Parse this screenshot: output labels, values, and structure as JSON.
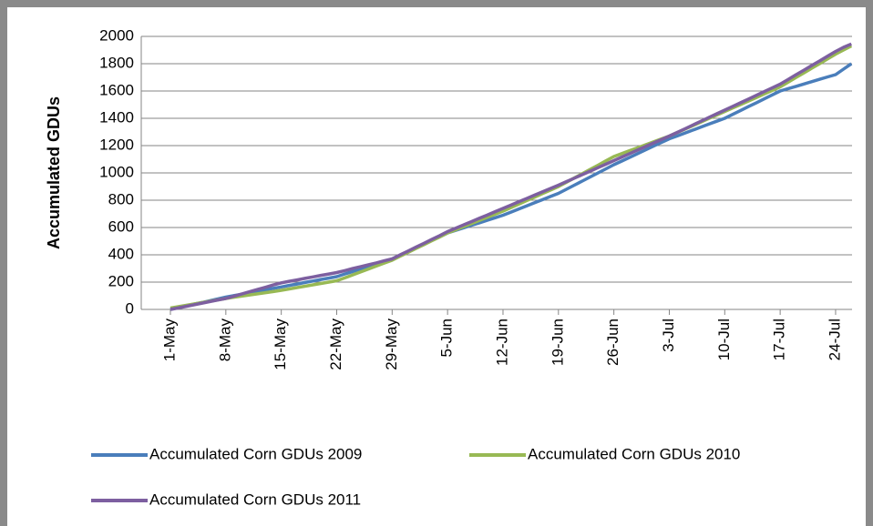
{
  "chart_data": {
    "type": "line",
    "y_label": "Accumulated GDUs",
    "categories": [
      "1-May",
      null,
      null,
      null,
      null,
      null,
      null,
      "8-May",
      null,
      null,
      null,
      null,
      null,
      null,
      "15-May",
      null,
      null,
      null,
      null,
      null,
      null,
      "22-May",
      null,
      null,
      null,
      null,
      null,
      null,
      "29-May",
      null,
      null,
      null,
      null,
      null,
      null,
      "5-Jun",
      null,
      null,
      null,
      null,
      null,
      null,
      "12-Jun",
      null,
      null,
      null,
      null,
      null,
      null,
      "19-Jun",
      null,
      null,
      null,
      null,
      null,
      null,
      "26-Jun",
      null,
      null,
      null,
      null,
      null,
      null,
      "3-Jul",
      null,
      null,
      null,
      null,
      null,
      null,
      "10-Jul",
      null,
      null,
      null,
      null,
      null,
      null,
      "17-Jul",
      null,
      null,
      null,
      null,
      null,
      null,
      "24-Jul",
      null,
      null
    ],
    "series": [
      {
        "name": "Accumulated Corn GDUs 2009",
        "color": "#4a7ebb",
        "values": [
          0,
          13,
          26,
          39,
          51,
          64,
          77,
          90,
          101,
          111,
          122,
          133,
          144,
          154,
          165,
          176,
          186,
          197,
          208,
          219,
          229,
          240,
          259,
          277,
          296,
          314,
          333,
          351,
          370,
          397,
          424,
          451,
          479,
          506,
          533,
          560,
          579,
          597,
          616,
          634,
          653,
          671,
          690,
          713,
          736,
          759,
          781,
          804,
          827,
          850,
          880,
          910,
          940,
          970,
          1000,
          1030,
          1060,
          1087,
          1114,
          1141,
          1169,
          1196,
          1223,
          1250,
          1271,
          1293,
          1314,
          1336,
          1357,
          1379,
          1400,
          1429,
          1457,
          1486,
          1514,
          1543,
          1571,
          1600,
          1617,
          1634,
          1651,
          1669,
          1686,
          1703,
          1720,
          1760,
          1800
        ]
      },
      {
        "name": "Accumulated Corn GDUs 2010",
        "color": "#98b954",
        "values": [
          10,
          20,
          30,
          40,
          50,
          60,
          70,
          80,
          89,
          97,
          106,
          114,
          123,
          131,
          140,
          150,
          160,
          170,
          180,
          190,
          200,
          210,
          231,
          253,
          274,
          296,
          317,
          339,
          360,
          389,
          417,
          446,
          474,
          503,
          531,
          560,
          583,
          606,
          629,
          651,
          674,
          697,
          720,
          746,
          771,
          797,
          823,
          849,
          874,
          900,
          931,
          963,
          994,
          1026,
          1057,
          1089,
          1120,
          1141,
          1163,
          1184,
          1206,
          1227,
          1249,
          1270,
          1296,
          1321,
          1347,
          1373,
          1399,
          1424,
          1450,
          1476,
          1501,
          1527,
          1553,
          1579,
          1604,
          1630,
          1664,
          1699,
          1733,
          1767,
          1801,
          1836,
          1870,
          1900,
          1930
        ]
      },
      {
        "name": "Accumulated Corn GDUs 2011",
        "color": "#7d5fa0",
        "values": [
          0,
          11,
          23,
          34,
          46,
          57,
          69,
          80,
          96,
          113,
          129,
          146,
          162,
          179,
          195,
          206,
          216,
          227,
          238,
          249,
          259,
          270,
          284,
          299,
          313,
          327,
          341,
          356,
          370,
          399,
          427,
          456,
          484,
          513,
          541,
          570,
          594,
          619,
          643,
          667,
          691,
          716,
          740,
          764,
          789,
          813,
          837,
          861,
          886,
          910,
          936,
          961,
          987,
          1013,
          1039,
          1064,
          1090,
          1116,
          1141,
          1167,
          1193,
          1219,
          1244,
          1270,
          1297,
          1324,
          1351,
          1379,
          1406,
          1433,
          1460,
          1487,
          1514,
          1541,
          1569,
          1596,
          1623,
          1650,
          1684,
          1719,
          1753,
          1787,
          1821,
          1856,
          1890,
          1920,
          1945
        ]
      }
    ],
    "ylim": [
      0,
      2000
    ],
    "yticks": [
      0,
      200,
      400,
      600,
      800,
      1000,
      1200,
      1400,
      1600,
      1800,
      2000
    ],
    "grid": true
  }
}
